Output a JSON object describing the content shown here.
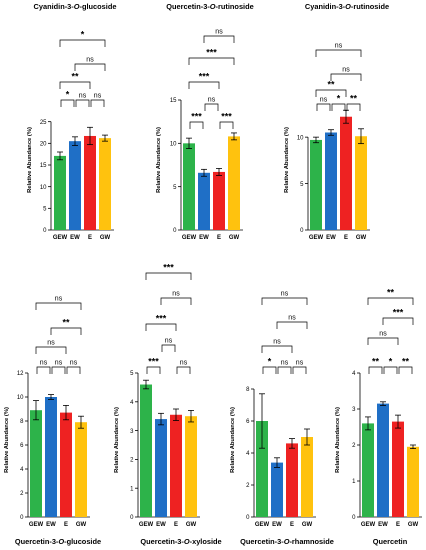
{
  "chart_data": [
    {
      "type": "bar",
      "title": "Cyanidin-3-O-glucoside",
      "ylabel": "Relative Abundance (%)",
      "categories": [
        "GEW",
        "EW",
        "E",
        "GW"
      ],
      "values": [
        17.1,
        20.5,
        21.7,
        21.2
      ],
      "errors": [
        0.9,
        1.0,
        2.0,
        0.7
      ],
      "ylim": [
        0,
        30
      ],
      "yticks": [
        "0",
        "5",
        "10",
        "15",
        "20",
        "25"
      ],
      "colors": [
        "#2db34a",
        "#1f6fc6",
        "#ee2222",
        "#ffc20e"
      ],
      "significance": [
        {
          "from": 0,
          "to": 1,
          "label": "*"
        },
        {
          "from": 1,
          "to": 2,
          "label": "ns"
        },
        {
          "from": 2,
          "to": 3,
          "label": "ns"
        },
        {
          "from": 0,
          "to": 2,
          "label": "**"
        },
        {
          "from": 1,
          "to": 3,
          "label": "ns"
        },
        {
          "from": 0,
          "to": 3,
          "label": "*"
        }
      ]
    },
    {
      "type": "bar",
      "title": "Quercetin-3-O-rutinoside",
      "ylabel": "Relative Abundance (%)",
      "categories": [
        "GEW",
        "EW",
        "E",
        "GW"
      ],
      "values": [
        10.0,
        6.6,
        6.7,
        10.8
      ],
      "errors": [
        0.6,
        0.4,
        0.4,
        0.4
      ],
      "ylim": [
        0,
        15
      ],
      "yticks": [
        "0",
        "5",
        "10",
        "15"
      ],
      "colors": [
        "#2db34a",
        "#1f6fc6",
        "#ee2222",
        "#ffc20e"
      ],
      "significance": [
        {
          "from": 0,
          "to": 1,
          "label": "***"
        },
        {
          "from": 2,
          "to": 3,
          "label": "***"
        },
        {
          "from": 1,
          "to": 2,
          "label": "ns"
        },
        {
          "from": 0,
          "to": 2,
          "label": "***"
        },
        {
          "from": 0,
          "to": 3,
          "label": "***"
        },
        {
          "from": 1,
          "to": 3,
          "label": "ns"
        }
      ]
    },
    {
      "type": "bar",
      "title": "Cyanidin-3-O-rutinoside",
      "ylabel": "Relative Abundance (%)",
      "categories": [
        "GEW",
        "EW",
        "E",
        "GW"
      ],
      "values": [
        9.7,
        10.5,
        12.2,
        10.1
      ],
      "errors": [
        0.3,
        0.3,
        0.7,
        0.8
      ],
      "ylim": [
        0,
        14
      ],
      "yticks": [
        "0",
        "5",
        "10"
      ],
      "colors": [
        "#2db34a",
        "#1f6fc6",
        "#ee2222",
        "#ffc20e"
      ],
      "significance": [
        {
          "from": 0,
          "to": 1,
          "label": "ns"
        },
        {
          "from": 1,
          "to": 2,
          "label": "*"
        },
        {
          "from": 2,
          "to": 3,
          "label": "**"
        },
        {
          "from": 0,
          "to": 2,
          "label": "**"
        },
        {
          "from": 1,
          "to": 3,
          "label": "ns"
        },
        {
          "from": 0,
          "to": 3,
          "label": "ns"
        }
      ]
    },
    {
      "type": "bar",
      "title": "Quercetin-3-O-glucoside",
      "ylabel": "Relative Abundance (%)",
      "categories": [
        "GEW",
        "EW",
        "E",
        "GW"
      ],
      "values": [
        8.9,
        10.0,
        8.7,
        7.9
      ],
      "errors": [
        0.8,
        0.2,
        0.6,
        0.5
      ],
      "ylim": [
        0,
        12
      ],
      "yticks": [
        "0",
        "2",
        "4",
        "6",
        "8",
        "10",
        "12"
      ],
      "colors": [
        "#2db34a",
        "#1f6fc6",
        "#ee2222",
        "#ffc20e"
      ],
      "significance": [
        {
          "from": 0,
          "to": 1,
          "label": "ns"
        },
        {
          "from": 1,
          "to": 2,
          "label": "ns"
        },
        {
          "from": 2,
          "to": 3,
          "label": "ns"
        },
        {
          "from": 0,
          "to": 2,
          "label": "ns"
        },
        {
          "from": 1,
          "to": 3,
          "label": "**"
        },
        {
          "from": 0,
          "to": 3,
          "label": "ns"
        }
      ]
    },
    {
      "type": "bar",
      "title": "Quercetin-3-O-xyloside",
      "ylabel": "Relative Abundance (%)",
      "categories": [
        "GEW",
        "EW",
        "E",
        "GW"
      ],
      "values": [
        4.6,
        3.4,
        3.55,
        3.5
      ],
      "errors": [
        0.15,
        0.2,
        0.2,
        0.2
      ],
      "ylim": [
        0,
        5
      ],
      "yticks": [
        "0",
        "1",
        "2",
        "3",
        "4",
        "5"
      ],
      "colors": [
        "#2db34a",
        "#1f6fc6",
        "#ee2222",
        "#ffc20e"
      ],
      "significance": [
        {
          "from": 0,
          "to": 1,
          "label": "***"
        },
        {
          "from": 2,
          "to": 3,
          "label": "ns"
        },
        {
          "from": 1,
          "to": 2,
          "label": "ns"
        },
        {
          "from": 0,
          "to": 2,
          "label": "***"
        },
        {
          "from": 1,
          "to": 3,
          "label": "ns"
        },
        {
          "from": 0,
          "to": 3,
          "label": "***"
        }
      ]
    },
    {
      "type": "bar",
      "title": "Quercetin-3-O-rhamnoside",
      "ylabel": "Relative Abundance (%)",
      "categories": [
        "GEW",
        "EW",
        "E",
        "GW"
      ],
      "values": [
        6.0,
        3.4,
        4.6,
        5.0
      ],
      "errors": [
        1.7,
        0.3,
        0.3,
        0.5
      ],
      "ylim": [
        0,
        9
      ],
      "yticks": [
        "0",
        "2",
        "4",
        "6",
        "8"
      ],
      "colors": [
        "#2db34a",
        "#1f6fc6",
        "#ee2222",
        "#ffc20e"
      ],
      "significance": [
        {
          "from": 0,
          "to": 1,
          "label": "*"
        },
        {
          "from": 1,
          "to": 2,
          "label": "ns"
        },
        {
          "from": 2,
          "to": 3,
          "label": "ns"
        },
        {
          "from": 0,
          "to": 2,
          "label": "ns"
        },
        {
          "from": 1,
          "to": 3,
          "label": "ns"
        },
        {
          "from": 0,
          "to": 3,
          "label": "ns"
        }
      ]
    },
    {
      "type": "bar",
      "title": "Quercetin",
      "ylabel": "Relative Abundance (%)",
      "categories": [
        "GEW",
        "EW",
        "E",
        "GW"
      ],
      "values": [
        2.6,
        3.15,
        2.65,
        1.95
      ],
      "errors": [
        0.18,
        0.05,
        0.18,
        0.05
      ],
      "ylim": [
        0,
        4
      ],
      "yticks": [
        "0",
        "1",
        "2",
        "3",
        "4"
      ],
      "colors": [
        "#2db34a",
        "#1f6fc6",
        "#ee2222",
        "#ffc20e"
      ],
      "significance": [
        {
          "from": 0,
          "to": 1,
          "label": "**"
        },
        {
          "from": 1,
          "to": 2,
          "label": "*"
        },
        {
          "from": 2,
          "to": 3,
          "label": "**"
        },
        {
          "from": 0,
          "to": 2,
          "label": "ns"
        },
        {
          "from": 1,
          "to": 3,
          "label": "***"
        },
        {
          "from": 0,
          "to": 3,
          "label": "**"
        }
      ]
    }
  ]
}
